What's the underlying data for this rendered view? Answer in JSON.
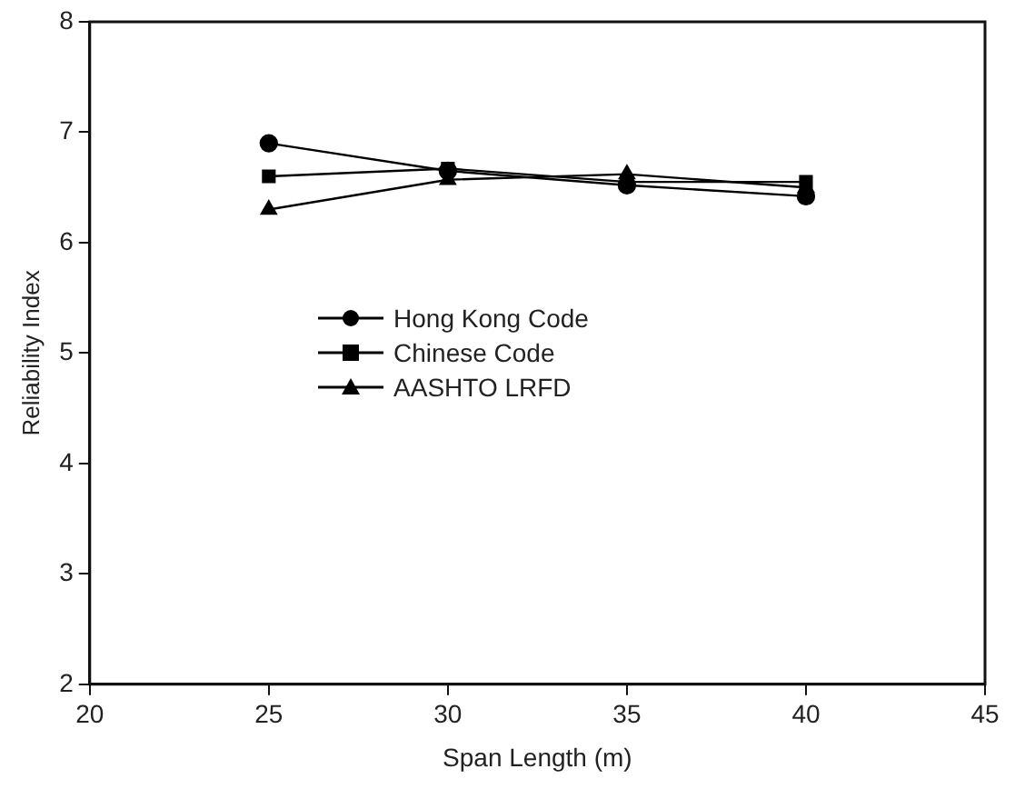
{
  "chart_data": {
    "type": "line",
    "xlabel": "Span Length (m)",
    "ylabel": "Reliability Index",
    "x": [
      25,
      30,
      35,
      40
    ],
    "series": [
      {
        "name": "Hong Kong Code",
        "color": "#000000",
        "marker": "circle",
        "values": [
          6.9,
          6.65,
          6.52,
          6.42
        ]
      },
      {
        "name": "Chinese Code",
        "color": "#000000",
        "marker": "square",
        "values": [
          6.6,
          6.67,
          6.55,
          6.55
        ]
      },
      {
        "name": "AASHTO LRFD",
        "color": "#000000",
        "marker": "triangle",
        "values": [
          6.3,
          6.57,
          6.62,
          6.5
        ]
      }
    ],
    "xlim": [
      20,
      45
    ],
    "xticks": [
      20,
      25,
      30,
      35,
      40,
      45
    ],
    "ylim": [
      2,
      8
    ],
    "yticks": [
      2,
      3,
      4,
      5,
      6,
      7,
      8
    ],
    "grid": false,
    "legend": "left",
    "line_style": "solid"
  }
}
